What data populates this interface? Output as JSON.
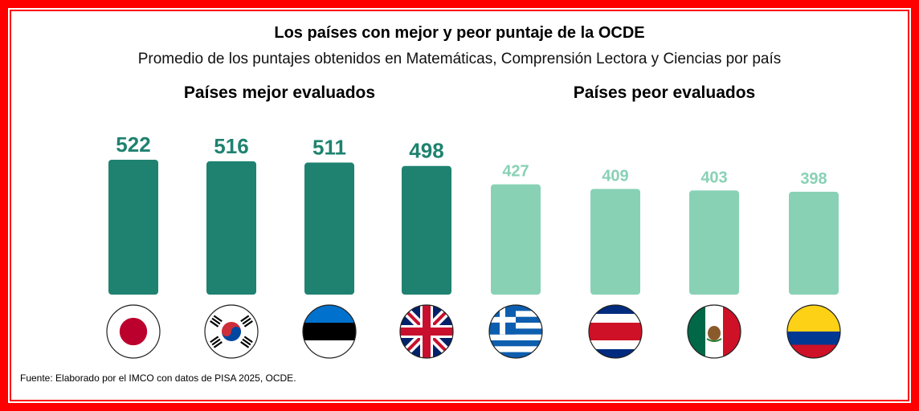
{
  "title": "Los países con mejor y peor puntaje de la OCDE",
  "subtitle": "Promedio de los puntajes obtenidos en Matemáticas, Comprensión Lectora y Ciencias por país",
  "groups": {
    "best": "Países mejor evaluados",
    "worst": "Países peor evaluados"
  },
  "source": "Fuente: Elaborado por el IMCO con datos de PISA 2025, OCDE.",
  "colors": {
    "best": "#1f8270",
    "worst": "#88d1b5",
    "frame": "#ff0000"
  },
  "chart_data": {
    "type": "bar",
    "title": "Los países con mejor y peor puntaje de la OCDE",
    "subtitle": "Promedio de los puntajes obtenidos en Matemáticas, Comprensión Lectora y Ciencias por país",
    "categories": [
      "Japón",
      "Corea del Sur",
      "Estonia",
      "Reino Unido",
      "Grecia",
      "Costa Rica",
      "México",
      "Colombia"
    ],
    "category_icons": [
      "japan-flag-icon",
      "south-korea-flag-icon",
      "estonia-flag-icon",
      "uk-flag-icon",
      "greece-flag-icon",
      "costa-rica-flag-icon",
      "mexico-flag-icon",
      "colombia-flag-icon"
    ],
    "values": [
      522,
      516,
      511,
      498,
      427,
      409,
      403,
      398
    ],
    "groups": [
      "best",
      "best",
      "best",
      "best",
      "worst",
      "worst",
      "worst",
      "worst"
    ],
    "data_labels": [
      "522",
      "516",
      "511",
      "498",
      "427",
      "409",
      "403",
      "398"
    ],
    "xlabel": "",
    "ylabel": "",
    "grid": false,
    "legend": "none"
  }
}
